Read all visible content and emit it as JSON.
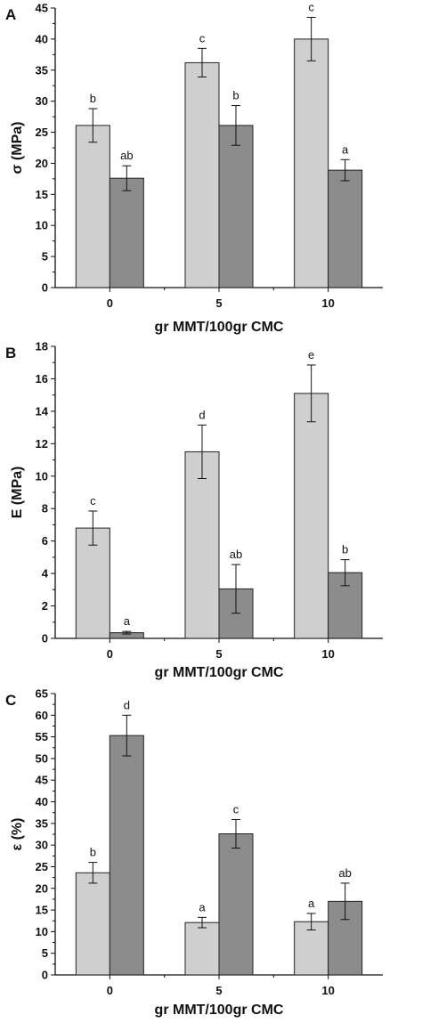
{
  "chart_data": [
    {
      "type": "bar",
      "panel": "A",
      "ylabel": "σ (MPa)",
      "xlabel": "gr MMT/100gr CMC",
      "categories": [
        "0",
        "5",
        "10"
      ],
      "ylim": [
        0,
        45
      ],
      "ytick_step": 5,
      "series": [
        {
          "color": "#cfcfcf",
          "values": [
            26.1,
            36.2,
            40.0
          ],
          "errors": [
            2.7,
            2.3,
            3.5
          ],
          "labels": [
            "b",
            "c",
            "c"
          ]
        },
        {
          "color": "#8c8c8c",
          "values": [
            17.6,
            26.1,
            18.9
          ],
          "errors": [
            2.0,
            3.2,
            1.7
          ],
          "labels": [
            "ab",
            "b",
            "a"
          ]
        }
      ],
      "grid": false,
      "legend": "none"
    },
    {
      "type": "bar",
      "panel": "B",
      "ylabel": "E (MPa)",
      "xlabel": "gr MMT/100gr CMC",
      "categories": [
        "0",
        "5",
        "10"
      ],
      "ylim": [
        0,
        18
      ],
      "ytick_step": 2,
      "series": [
        {
          "color": "#cfcfcf",
          "values": [
            6.8,
            11.5,
            15.1
          ],
          "errors": [
            1.05,
            1.65,
            1.75
          ],
          "labels": [
            "c",
            "d",
            "e"
          ]
        },
        {
          "color": "#8c8c8c",
          "values": [
            0.35,
            3.05,
            4.05
          ],
          "errors": [
            0.08,
            1.5,
            0.8
          ],
          "labels": [
            "a",
            "ab",
            "b"
          ]
        }
      ],
      "grid": false,
      "legend": "none"
    },
    {
      "type": "bar",
      "panel": "C",
      "ylabel": "ε (%)",
      "xlabel": "gr MMT/100gr CMC",
      "categories": [
        "0",
        "5",
        "10"
      ],
      "ylim": [
        0,
        65
      ],
      "ytick_step": 5,
      "series": [
        {
          "color": "#cfcfcf",
          "values": [
            23.6,
            12.1,
            12.3
          ],
          "errors": [
            2.4,
            1.2,
            1.9
          ],
          "labels": [
            "b",
            "a",
            "a"
          ]
        },
        {
          "color": "#8c8c8c",
          "values": [
            55.3,
            32.6,
            17.0
          ],
          "errors": [
            4.7,
            3.3,
            4.2
          ],
          "labels": [
            "d",
            "c",
            "ab"
          ]
        }
      ],
      "grid": false,
      "legend": "none"
    }
  ]
}
